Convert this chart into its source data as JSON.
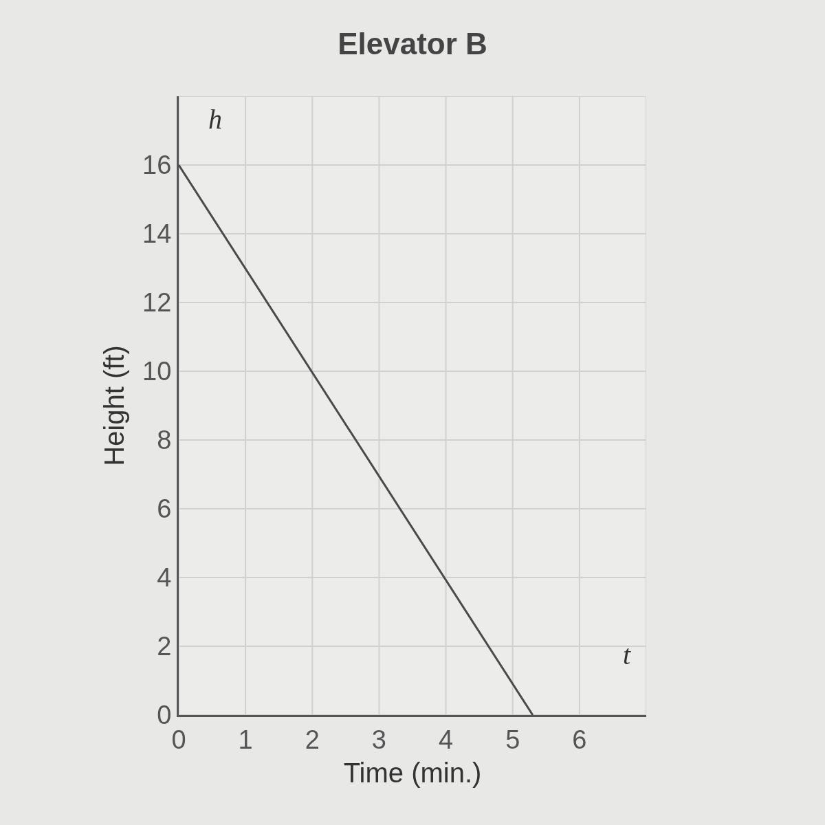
{
  "chart_data": {
    "type": "line",
    "title": "Elevator B",
    "xlabel": "Time (min.)",
    "ylabel": "Height (ft)",
    "x": [
      0,
      5.3
    ],
    "series": [
      {
        "color": "#4a4a4a",
        "values": [
          16,
          0
        ]
      }
    ],
    "xlim": [
      0,
      7
    ],
    "ylim": [
      0,
      18
    ],
    "xticks": [
      0,
      1,
      2,
      3,
      4,
      5,
      6
    ],
    "yticks": [
      0,
      2,
      4,
      6,
      8,
      10,
      12,
      14,
      16
    ],
    "annotations": [
      "h",
      "t"
    ],
    "grid": true,
    "legend": false,
    "marker": "none",
    "line_style": "solid"
  }
}
